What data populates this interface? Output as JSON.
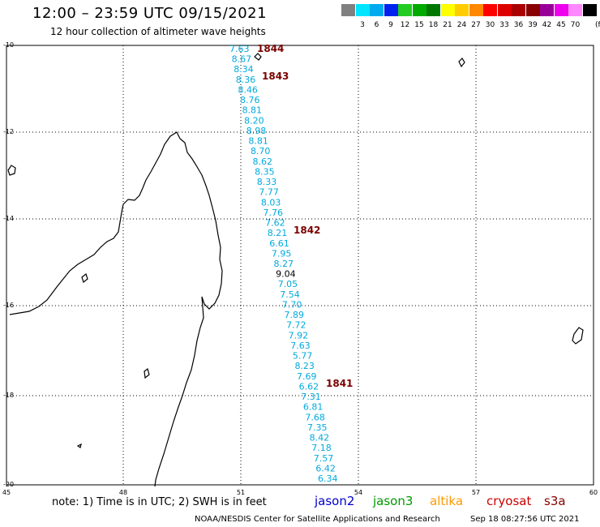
{
  "header": {
    "title": "12:00 – 23:59 UTC 09/15/2021",
    "subtitle": "12 hour collection of altimeter wave heights"
  },
  "scale": {
    "colors": [
      "#808080",
      "#00e5ff",
      "#00aaee",
      "#0022ee",
      "#22cc22",
      "#00aa00",
      "#007700",
      "#ffff00",
      "#ffcc00",
      "#ff8800",
      "#ff0000",
      "#dd0000",
      "#aa0000",
      "#880000",
      "#990099",
      "#ee00ee",
      "#ff88ff",
      "#000000"
    ],
    "labels": [
      "3",
      "6",
      "9",
      "12",
      "15",
      "18",
      "21",
      "24",
      "27",
      "30",
      "33",
      "36",
      "39",
      "42",
      "45",
      "70"
    ],
    "unit": "(ft)"
  },
  "map": {
    "lat_labels": [
      "-10",
      "-12",
      "-14",
      "-16",
      "-18",
      "-20"
    ],
    "lon_labels": [
      "45",
      "48",
      "51",
      "54",
      "57",
      "60"
    ],
    "swh_values": [
      "7.63",
      "8.67",
      "8.34",
      "8.36",
      "8.46",
      "8.76",
      "8.81",
      "8.20",
      "8.98",
      "8.81",
      "8.70",
      "8.62",
      "8.35",
      "8.33",
      "7.77",
      "8.03",
      "7.76",
      "7.62",
      "8.21",
      "6.61",
      "7.95",
      "8.27",
      "9.04",
      "7.05",
      "7.54",
      "7.70",
      "7.89",
      "7.72",
      "7.92",
      "7.63",
      "5.77",
      "8.23",
      "7.69",
      "6.62",
      "7.31",
      "6.81",
      "7.68",
      "7.35",
      "8.42",
      "7.18",
      "7.57",
      "6.42",
      "6.34"
    ],
    "highlight_value": "9.04",
    "orbits": [
      "1844",
      "1843",
      "1842",
      "1841"
    ]
  },
  "footer": {
    "note": "note:  1) Time is in UTC;  2) SWH is in feet",
    "satellites": [
      {
        "name": "jason2",
        "color": "#0000cc"
      },
      {
        "name": "jason3",
        "color": "#009900"
      },
      {
        "name": "altika",
        "color": "#ff9900"
      },
      {
        "name": "cryosat",
        "color": "#cc0000"
      },
      {
        "name": "s3a",
        "color": "#880000"
      }
    ],
    "credit": "NOAA/NESDIS Center for Satellite Applications and Research",
    "timestamp": "Sep 18 08:27:56 UTC 2021"
  }
}
